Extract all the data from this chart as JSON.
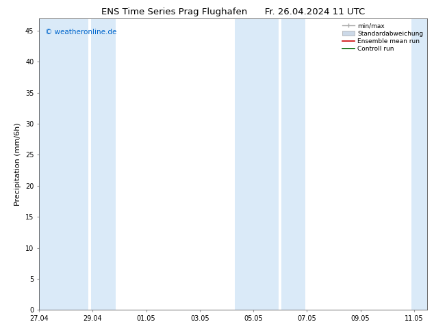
{
  "title": "ENS Time Series Prag Flughafen      Fr. 26.04.2024 11 UTC",
  "ylabel": "Precipitation (mm/6h)",
  "watermark": "© weatheronline.de",
  "watermark_color": "#0066cc",
  "ylim": [
    0,
    47
  ],
  "yticks": [
    0,
    5,
    10,
    15,
    20,
    25,
    30,
    35,
    40,
    45
  ],
  "background_color": "#ffffff",
  "plot_bg_color": "#ffffff",
  "shaded_band_color": "#daeaf8",
  "shaded_bands": [
    [
      0.0,
      1.85
    ],
    [
      1.95,
      2.85
    ],
    [
      7.3,
      8.95
    ],
    [
      9.05,
      9.95
    ],
    [
      13.9,
      14.5
    ]
  ],
  "x_tick_labels": [
    "27.04",
    "29.04",
    "01.05",
    "03.05",
    "05.05",
    "07.05",
    "09.05",
    "11.05"
  ],
  "x_tick_positions": [
    0,
    2,
    4,
    6,
    8,
    10,
    12,
    14
  ],
  "xlim": [
    0,
    14.5
  ],
  "title_fontsize": 9.5,
  "tick_fontsize": 7,
  "label_fontsize": 8,
  "watermark_fontsize": 7.5,
  "legend_fontsize": 6.5
}
